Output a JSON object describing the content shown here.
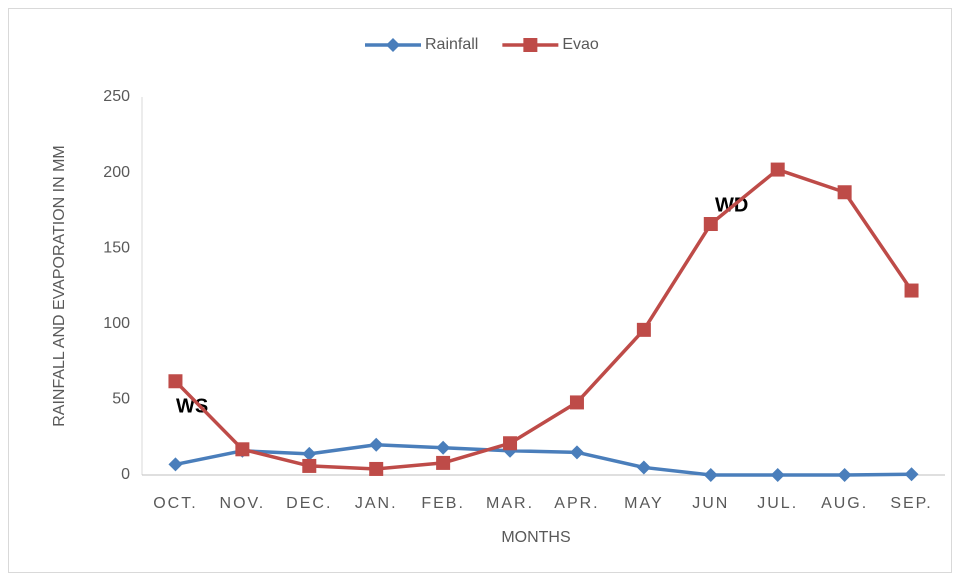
{
  "chart_data": {
    "type": "line",
    "categories": [
      "OCT.",
      "NOV.",
      "DEC.",
      "JAN.",
      "FEB.",
      "MAR.",
      "APR.",
      "MAY",
      "JUN",
      "JUL.",
      "AUG.",
      "SEP."
    ],
    "series": [
      {
        "name": "Rainfall",
        "color": "#4a7ebb",
        "marker": "diamond",
        "values": [
          7,
          16,
          14,
          20,
          18,
          16,
          15,
          5,
          0,
          0,
          0,
          0.5
        ]
      },
      {
        "name": "Evao",
        "color": "#be4b48",
        "marker": "square",
        "values": [
          62,
          17,
          6,
          4,
          8,
          21,
          48,
          96,
          166,
          202,
          187,
          122
        ]
      }
    ],
    "ylim": [
      0,
      250
    ],
    "yticks": [
      0,
      50,
      100,
      150,
      200,
      250
    ],
    "grid": false,
    "x_label": "MONTHS",
    "y_label": "RAINFALL AND EVAPORATION IN MM",
    "annotations": [
      "WS",
      "WD"
    ],
    "legend": "top"
  }
}
